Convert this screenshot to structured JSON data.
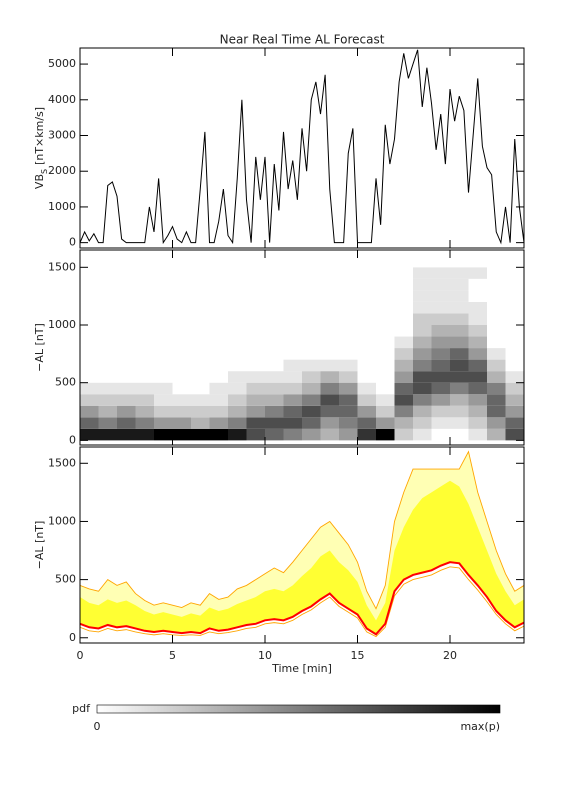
{
  "chart_data": [
    {
      "type": "line",
      "title": "Near Real Time AL Forecast",
      "ylabel": "VB",
      "ylabel_subscript": "S",
      "ylabel_unit": "[nT×km/s]",
      "color": "#000000",
      "x": [
        0,
        0.25,
        0.5,
        0.75,
        1,
        1.25,
        1.5,
        1.75,
        2,
        2.25,
        2.5,
        2.75,
        3,
        3.25,
        3.5,
        3.75,
        4,
        4.25,
        4.5,
        4.75,
        5,
        5.25,
        5.5,
        5.75,
        6,
        6.25,
        6.5,
        6.75,
        7,
        7.25,
        7.5,
        7.75,
        8,
        8.25,
        8.5,
        8.75,
        9,
        9.25,
        9.5,
        9.75,
        10,
        10.25,
        10.5,
        10.75,
        11,
        11.25,
        11.5,
        11.75,
        12,
        12.25,
        12.5,
        12.75,
        13,
        13.25,
        13.5,
        13.75,
        14,
        14.25,
        14.5,
        14.75,
        15,
        15.25,
        15.5,
        15.75,
        16,
        16.25,
        16.5,
        16.75,
        17,
        17.25,
        17.5,
        17.75,
        18,
        18.25,
        18.5,
        18.75,
        19,
        19.25,
        19.5,
        19.75,
        20,
        20.25,
        20.5,
        20.75,
        21,
        21.25,
        21.5,
        21.75,
        22,
        22.25,
        22.5,
        22.75,
        23,
        23.25,
        23.5,
        23.75,
        24
      ],
      "values": [
        0,
        300,
        50,
        250,
        0,
        0,
        1600,
        1700,
        1300,
        100,
        0,
        0,
        0,
        0,
        0,
        1000,
        300,
        1800,
        0,
        200,
        450,
        100,
        0,
        300,
        0,
        0,
        1500,
        3100,
        0,
        0,
        600,
        1500,
        200,
        0,
        1800,
        4000,
        1200,
        0,
        2400,
        1200,
        2400,
        0,
        2200,
        900,
        3100,
        1500,
        2300,
        1200,
        3200,
        2000,
        4000,
        4500,
        3600,
        4700,
        1500,
        0,
        0,
        0,
        2500,
        3200,
        0,
        0,
        0,
        0,
        1800,
        500,
        3300,
        2200,
        2900,
        4500,
        5300,
        4600,
        5000,
        5400,
        3800,
        4900,
        3900,
        2600,
        3600,
        2200,
        4300,
        3400,
        4100,
        3700,
        1400,
        3000,
        4600,
        2700,
        2100,
        1900,
        300,
        0,
        1000,
        0,
        2900,
        1000,
        0
      ],
      "xlim": [
        0,
        24
      ],
      "xticks": [
        0,
        5,
        10,
        15,
        20
      ],
      "ylim": [
        -150,
        5450
      ],
      "yticks": [
        0,
        1000,
        2000,
        3000,
        4000,
        5000
      ]
    },
    {
      "type": "heatmap",
      "ylabel": "−AL [nT]",
      "x_edges": [
        0,
        1,
        2,
        3,
        4,
        5,
        6,
        7,
        8,
        9,
        10,
        11,
        12,
        13,
        14,
        15,
        16,
        17,
        18,
        19,
        20,
        21,
        22,
        23,
        24
      ],
      "y_edges": [
        0,
        100,
        200,
        300,
        400,
        500,
        600,
        700,
        800,
        900,
        1000,
        1100,
        1200,
        1300,
        1400,
        1500,
        1600
      ],
      "z": [
        [
          0.9,
          0.6,
          0.4,
          0.2,
          0.1,
          0,
          0,
          0,
          0,
          0,
          0,
          0,
          0,
          0,
          0,
          0
        ],
        [
          0.9,
          0.5,
          0.3,
          0.2,
          0.1,
          0,
          0,
          0,
          0,
          0,
          0,
          0,
          0,
          0,
          0,
          0
        ],
        [
          0.9,
          0.6,
          0.4,
          0.2,
          0.1,
          0,
          0,
          0,
          0,
          0,
          0,
          0,
          0,
          0,
          0,
          0
        ],
        [
          0.9,
          0.5,
          0.3,
          0.2,
          0.1,
          0,
          0,
          0,
          0,
          0,
          0,
          0,
          0,
          0,
          0,
          0
        ],
        [
          1,
          0.4,
          0.2,
          0.1,
          0.1,
          0,
          0,
          0,
          0,
          0,
          0,
          0,
          0,
          0,
          0,
          0
        ],
        [
          1,
          0.4,
          0.2,
          0.1,
          0,
          0,
          0,
          0,
          0,
          0,
          0,
          0,
          0,
          0,
          0,
          0
        ],
        [
          1,
          0.3,
          0.2,
          0.1,
          0,
          0,
          0,
          0,
          0,
          0,
          0,
          0,
          0,
          0,
          0,
          0
        ],
        [
          1,
          0.4,
          0.2,
          0.1,
          0.1,
          0,
          0,
          0,
          0,
          0,
          0,
          0,
          0,
          0,
          0,
          0
        ],
        [
          0.9,
          0.5,
          0.3,
          0.2,
          0.1,
          0.1,
          0,
          0,
          0,
          0,
          0,
          0,
          0,
          0,
          0,
          0
        ],
        [
          0.7,
          0.7,
          0.4,
          0.3,
          0.2,
          0.1,
          0,
          0,
          0,
          0,
          0,
          0,
          0,
          0,
          0,
          0
        ],
        [
          0.6,
          0.7,
          0.5,
          0.3,
          0.2,
          0.1,
          0,
          0,
          0,
          0,
          0,
          0,
          0,
          0,
          0,
          0
        ],
        [
          0.5,
          0.7,
          0.6,
          0.4,
          0.2,
          0.1,
          0.1,
          0,
          0,
          0,
          0,
          0,
          0,
          0,
          0,
          0
        ],
        [
          0.4,
          0.6,
          0.7,
          0.5,
          0.3,
          0.2,
          0.1,
          0,
          0,
          0,
          0,
          0,
          0,
          0,
          0,
          0
        ],
        [
          0.3,
          0.4,
          0.6,
          0.7,
          0.5,
          0.3,
          0.1,
          0,
          0,
          0,
          0,
          0,
          0,
          0,
          0,
          0
        ],
        [
          0.4,
          0.5,
          0.6,
          0.6,
          0.4,
          0.2,
          0.1,
          0,
          0,
          0,
          0,
          0,
          0,
          0,
          0,
          0
        ],
        [
          0.8,
          0.6,
          0.4,
          0.2,
          0.1,
          0,
          0,
          0,
          0,
          0,
          0,
          0,
          0,
          0,
          0,
          0
        ],
        [
          1,
          0.4,
          0.2,
          0.1,
          0,
          0,
          0,
          0,
          0,
          0,
          0,
          0,
          0,
          0,
          0,
          0
        ],
        [
          0.2,
          0.3,
          0.5,
          0.7,
          0.6,
          0.4,
          0.3,
          0.2,
          0.1,
          0,
          0,
          0,
          0,
          0,
          0,
          0
        ],
        [
          0.1,
          0.2,
          0.3,
          0.5,
          0.7,
          0.7,
          0.5,
          0.4,
          0.3,
          0.2,
          0.2,
          0.1,
          0.1,
          0.1,
          0.1,
          0
        ],
        [
          0,
          0.1,
          0.2,
          0.4,
          0.6,
          0.7,
          0.6,
          0.5,
          0.4,
          0.3,
          0.2,
          0.1,
          0.1,
          0.1,
          0.1,
          0
        ],
        [
          0,
          0.1,
          0.2,
          0.3,
          0.5,
          0.7,
          0.7,
          0.6,
          0.4,
          0.3,
          0.2,
          0.1,
          0.1,
          0.1,
          0.1,
          0
        ],
        [
          0.1,
          0.2,
          0.3,
          0.4,
          0.6,
          0.7,
          0.6,
          0.4,
          0.3,
          0.2,
          0.1,
          0.1,
          0,
          0,
          0.1,
          0
        ],
        [
          0.3,
          0.4,
          0.6,
          0.6,
          0.5,
          0.3,
          0.2,
          0.1,
          0,
          0,
          0,
          0,
          0,
          0,
          0,
          0
        ],
        [
          0.7,
          0.6,
          0.4,
          0.3,
          0.2,
          0.1,
          0,
          0,
          0,
          0,
          0,
          0,
          0,
          0,
          0,
          0
        ]
      ],
      "clim": [
        0,
        1
      ],
      "colorbar": {
        "label": "pdf",
        "ticks": [
          0,
          {
            "value": 1,
            "label": "max(p)"
          }
        ]
      },
      "xlim": [
        0,
        24
      ],
      "xticks": [
        0,
        5,
        10,
        15,
        20
      ],
      "ylim": [
        -40,
        1650
      ],
      "yticks": [
        0,
        500,
        1000,
        1500
      ]
    },
    {
      "type": "band",
      "ylabel": "−AL [nT]",
      "xlabel": "Time [min]",
      "x": [
        0,
        0.5,
        1,
        1.5,
        2,
        2.5,
        3,
        3.5,
        4,
        4.5,
        5,
        5.5,
        6,
        6.5,
        7,
        7.5,
        8,
        8.5,
        9,
        9.5,
        10,
        10.5,
        11,
        11.5,
        12,
        12.5,
        13,
        13.5,
        14,
        14.5,
        15,
        15.5,
        16,
        16.5,
        17,
        17.5,
        18,
        18.5,
        19,
        19.5,
        20,
        20.5,
        21,
        21.5,
        22,
        22.5,
        23,
        23.5,
        24
      ],
      "median": {
        "color": "#ff0000",
        "values": [
          120,
          90,
          80,
          110,
          90,
          100,
          80,
          60,
          50,
          60,
          50,
          40,
          50,
          40,
          80,
          60,
          70,
          90,
          110,
          120,
          150,
          160,
          150,
          180,
          230,
          270,
          330,
          380,
          300,
          250,
          200,
          80,
          30,
          120,
          400,
          500,
          540,
          560,
          580,
          620,
          650,
          640,
          540,
          450,
          350,
          230,
          150,
          90,
          130
        ]
      },
      "quartile_band": {
        "color": "#ffff33",
        "high": [
          350,
          300,
          280,
          330,
          300,
          320,
          280,
          230,
          200,
          220,
          200,
          180,
          210,
          190,
          260,
          230,
          250,
          290,
          320,
          350,
          400,
          420,
          400,
          450,
          530,
          600,
          700,
          750,
          650,
          580,
          480,
          280,
          150,
          300,
          750,
          950,
          1100,
          1200,
          1250,
          1300,
          1350,
          1300,
          1150,
          950,
          750,
          550,
          400,
          280,
          330
        ]
      },
      "envelope": {
        "color": "#ffa500",
        "fill": "#ffffb4",
        "high": [
          450,
          420,
          400,
          500,
          450,
          480,
          380,
          320,
          280,
          300,
          280,
          260,
          300,
          280,
          380,
          330,
          350,
          420,
          450,
          500,
          550,
          600,
          560,
          650,
          750,
          850,
          950,
          1000,
          900,
          800,
          650,
          400,
          250,
          450,
          1000,
          1250,
          1450,
          1450,
          1450,
          1450,
          1450,
          1450,
          1600,
          1250,
          1000,
          750,
          550,
          400,
          450
        ],
        "low": [
          90,
          60,
          50,
          80,
          60,
          70,
          50,
          35,
          25,
          35,
          25,
          20,
          25,
          20,
          50,
          35,
          45,
          60,
          80,
          90,
          120,
          130,
          120,
          150,
          200,
          240,
          300,
          350,
          270,
          220,
          170,
          50,
          10,
          90,
          360,
          460,
          500,
          520,
          540,
          580,
          610,
          600,
          500,
          410,
          310,
          200,
          120,
          60,
          100
        ]
      },
      "xlim": [
        0,
        24
      ],
      "xticks": [
        0,
        5,
        10,
        15,
        20
      ],
      "ylim": [
        -45,
        1640
      ],
      "yticks": [
        0,
        500,
        1000,
        1500
      ]
    }
  ]
}
